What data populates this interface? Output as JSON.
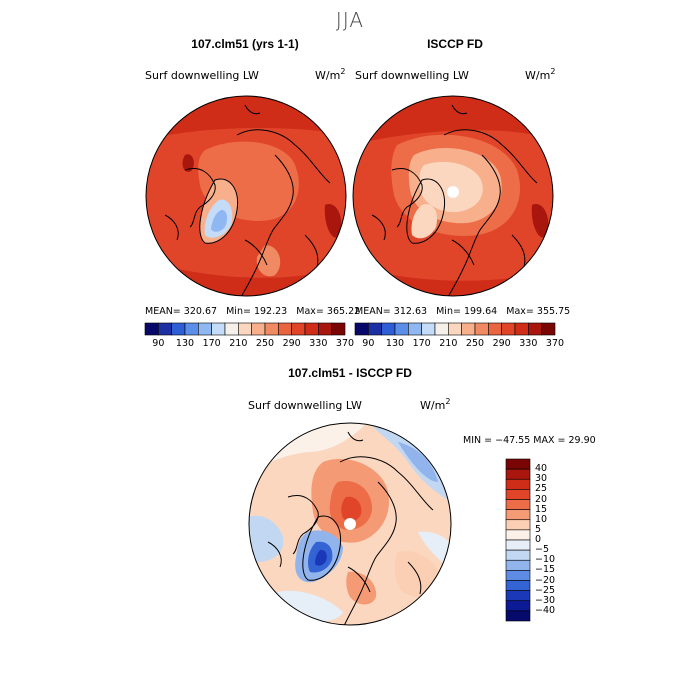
{
  "season": "JJA",
  "panels": [
    {
      "title": "107.clm51 (yrs 1-1)",
      "variable": "Surf downwelling LW",
      "units": "W/m",
      "units_sup": "2",
      "stats": {
        "mean": "320.67",
        "min": "192.23",
        "max": "365.22"
      },
      "mean_label": "MEAN=",
      "min_label": "Min=",
      "max_label": "Max="
    },
    {
      "title": "ISCCP FD",
      "variable": "Surf downwelling LW",
      "units": "W/m",
      "units_sup": "2",
      "stats": {
        "mean": "312.63",
        "min": "199.64",
        "max": "355.75"
      },
      "mean_label": "MEAN=",
      "min_label": "Min=",
      "max_label": "Max="
    },
    {
      "title": "107.clm51 - ISCCP FD",
      "variable": "Surf downwelling LW",
      "units": "W/m",
      "units_sup": "2",
      "stats_text": "MIN = −47.55 MAX =  29.90"
    }
  ],
  "chart_data": [
    {
      "type": "heatmap",
      "title": "107.clm51 (yrs 1-1)",
      "projection": "north polar stereographic",
      "colorbar": {
        "orientation": "horizontal",
        "levels": [
          90,
          130,
          170,
          210,
          250,
          290,
          330,
          370
        ],
        "colors": [
          "#08086b",
          "#1c2fa3",
          "#2e5ed6",
          "#5b8ee8",
          "#8fb8f2",
          "#c4dcf7",
          "#f6f0ea",
          "#fbd7bf",
          "#f7af8c",
          "#f08a62",
          "#e9653f",
          "#e0452a",
          "#cf2d18",
          "#a8160d",
          "#7a0505"
        ]
      },
      "stats": {
        "mean": 320.67,
        "min": 192.23,
        "max": 365.22
      }
    },
    {
      "type": "heatmap",
      "title": "ISCCP FD",
      "projection": "north polar stereographic",
      "colorbar": {
        "orientation": "horizontal",
        "levels": [
          90,
          130,
          170,
          210,
          250,
          290,
          330,
          370
        ],
        "colors": [
          "#08086b",
          "#1c2fa3",
          "#2e5ed6",
          "#5b8ee8",
          "#8fb8f2",
          "#c4dcf7",
          "#f6f0ea",
          "#fbd7bf",
          "#f7af8c",
          "#f08a62",
          "#e9653f",
          "#e0452a",
          "#cf2d18",
          "#a8160d",
          "#7a0505"
        ]
      },
      "stats": {
        "mean": 312.63,
        "min": 199.64,
        "max": 355.75
      }
    },
    {
      "type": "heatmap",
      "title": "107.clm51 - ISCCP FD",
      "projection": "north polar stereographic",
      "colorbar": {
        "orientation": "vertical",
        "levels": [
          "40",
          "30",
          "25",
          "20",
          "15",
          "10",
          "5",
          "0",
          "−5",
          "−10",
          "−15",
          "−20",
          "−25",
          "−30",
          "−40"
        ],
        "colors": [
          "#7a0505",
          "#a8160d",
          "#cf2d18",
          "#e0452a",
          "#ec6d48",
          "#f49a74",
          "#fbcfb3",
          "#fbf1e9",
          "#e6eef8",
          "#c1d7f2",
          "#91b4ec",
          "#5e8be3",
          "#3463d3",
          "#1b38b8",
          "#0c1a96",
          "#060a6b"
        ]
      },
      "stats": {
        "min": -47.55,
        "max": 29.9
      }
    }
  ]
}
